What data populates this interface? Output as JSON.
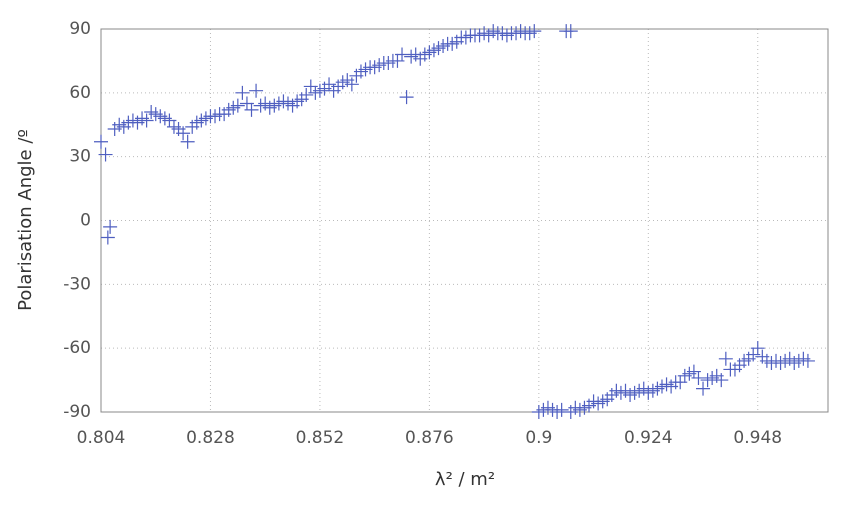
{
  "chart_data": {
    "type": "scatter",
    "xlabel": "λ² / m²",
    "ylabel": "Polarisation Angle /º",
    "color": "#4f5fc0",
    "xlim": [
      0.804,
      0.9634
    ],
    "ylim": [
      -90,
      90
    ],
    "xticks": [
      0.804,
      0.828,
      0.852,
      0.876,
      0.9,
      0.924,
      0.948
    ],
    "yticks": [
      -90,
      -60,
      -30,
      0,
      30,
      60,
      90
    ],
    "grid": true,
    "x": [
      0.804,
      0.805,
      0.806,
      0.8055,
      0.807,
      0.808,
      0.809,
      0.81,
      0.811,
      0.812,
      0.813,
      0.814,
      0.815,
      0.816,
      0.817,
      0.818,
      0.819,
      0.82,
      0.821,
      0.822,
      0.823,
      0.824,
      0.825,
      0.826,
      0.827,
      0.828,
      0.829,
      0.83,
      0.831,
      0.832,
      0.833,
      0.834,
      0.835,
      0.836,
      0.837,
      0.838,
      0.839,
      0.84,
      0.841,
      0.842,
      0.843,
      0.844,
      0.845,
      0.846,
      0.847,
      0.848,
      0.849,
      0.85,
      0.851,
      0.852,
      0.853,
      0.854,
      0.855,
      0.856,
      0.857,
      0.858,
      0.859,
      0.86,
      0.861,
      0.862,
      0.863,
      0.864,
      0.865,
      0.866,
      0.867,
      0.868,
      0.869,
      0.87,
      0.871,
      0.872,
      0.873,
      0.874,
      0.875,
      0.876,
      0.877,
      0.878,
      0.879,
      0.88,
      0.881,
      0.882,
      0.883,
      0.884,
      0.885,
      0.886,
      0.887,
      0.888,
      0.889,
      0.89,
      0.891,
      0.892,
      0.893,
      0.894,
      0.895,
      0.896,
      0.897,
      0.898,
      0.899,
      0.906,
      0.907,
      0.9,
      0.901,
      0.902,
      0.903,
      0.904,
      0.905,
      0.907,
      0.908,
      0.909,
      0.91,
      0.911,
      0.912,
      0.913,
      0.914,
      0.915,
      0.916,
      0.917,
      0.918,
      0.919,
      0.92,
      0.921,
      0.922,
      0.923,
      0.924,
      0.925,
      0.926,
      0.927,
      0.928,
      0.929,
      0.93,
      0.931,
      0.932,
      0.933,
      0.934,
      0.935,
      0.936,
      0.937,
      0.938,
      0.939,
      0.94,
      0.941,
      0.942,
      0.943,
      0.944,
      0.945,
      0.946,
      0.947,
      0.948,
      0.949,
      0.95,
      0.951,
      0.952,
      0.953,
      0.954,
      0.955,
      0.956,
      0.957,
      0.958,
      0.959
    ],
    "values": [
      37,
      31,
      -3,
      -8,
      43,
      45,
      44,
      46,
      47,
      46,
      48,
      47,
      51,
      50,
      49,
      48,
      47,
      44,
      43,
      41,
      37,
      44,
      46,
      47,
      48,
      49,
      49,
      50,
      50,
      52,
      53,
      54,
      60,
      55,
      52,
      61,
      54,
      55,
      53,
      54,
      55,
      56,
      55,
      54,
      56,
      57,
      59,
      63,
      60,
      61,
      62,
      64,
      61,
      63,
      65,
      66,
      64,
      68,
      70,
      71,
      72,
      72,
      73,
      74,
      74,
      75,
      75,
      78,
      58,
      77,
      78,
      76,
      78,
      79,
      80,
      81,
      82,
      83,
      83,
      84,
      86,
      86,
      87,
      87,
      87,
      88,
      87,
      89,
      88,
      88,
      87,
      88,
      88,
      89,
      88,
      88,
      89,
      89,
      89,
      -90,
      -89,
      -88,
      -89,
      -90,
      -89,
      -90,
      -88,
      -89,
      -88,
      -87,
      -85,
      -86,
      -85,
      -84,
      -82,
      -80,
      -81,
      -80,
      -82,
      -81,
      -80,
      -79,
      -81,
      -80,
      -79,
      -78,
      -77,
      -78,
      -76,
      -76,
      -73,
      -72,
      -71,
      -74,
      -79,
      -75,
      -74,
      -73,
      -75,
      -65,
      -70,
      -70,
      -68,
      -66,
      -65,
      -63,
      -60,
      -64,
      -66,
      -67,
      -66,
      -67,
      -66,
      -65,
      -67,
      -66,
      -65,
      -66
    ]
  }
}
